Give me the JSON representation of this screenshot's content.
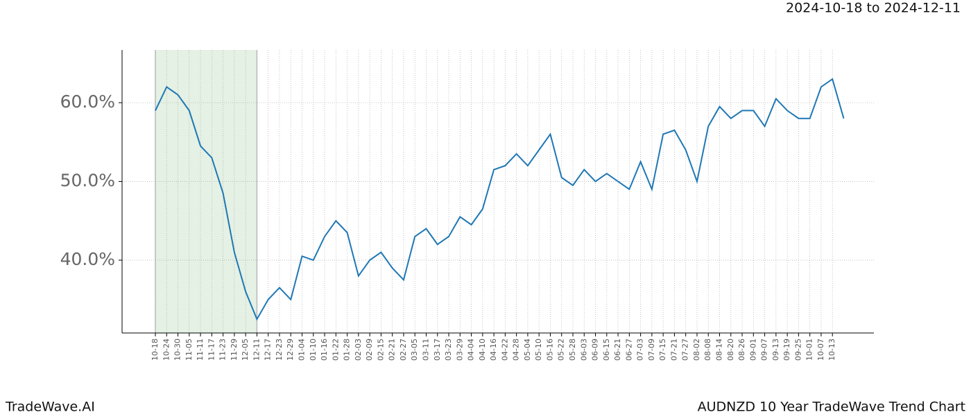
{
  "chart_data": {
    "type": "line",
    "title": "2024-10-18 to 2024-12-11",
    "footer_left": "TradeWave.AI",
    "footer_right": "AUDNZD 10 Year TradeWave Trend Chart",
    "categories": [
      "10-18",
      "10-24",
      "10-30",
      "11-05",
      "11-11",
      "11-17",
      "11-23",
      "11-29",
      "12-05",
      "12-11",
      "12-17",
      "12-23",
      "12-29",
      "01-04",
      "01-10",
      "01-16",
      "01-22",
      "01-28",
      "02-03",
      "02-09",
      "02-15",
      "02-21",
      "02-27",
      "03-05",
      "03-11",
      "03-17",
      "03-23",
      "03-29",
      "04-04",
      "04-10",
      "04-16",
      "04-22",
      "04-28",
      "05-04",
      "05-10",
      "05-16",
      "05-22",
      "05-28",
      "06-03",
      "06-09",
      "06-15",
      "06-21",
      "06-27",
      "07-03",
      "07-09",
      "07-15",
      "07-21",
      "07-27",
      "08-02",
      "08-08",
      "08-14",
      "08-20",
      "08-26",
      "09-01",
      "09-07",
      "09-13",
      "09-19",
      "09-25",
      "10-01",
      "10-07",
      "10-13",
      null
    ],
    "series": [
      {
        "color": "#1f77b4",
        "values": [
          59,
          62,
          61,
          59,
          54.5,
          53,
          48.5,
          41,
          36,
          32.5,
          35,
          36.5,
          35,
          40.5,
          40,
          43,
          45,
          43.5,
          38,
          40,
          41,
          39,
          37.5,
          43,
          44,
          42,
          43,
          45.5,
          44.5,
          46.5,
          51.5,
          52,
          53.5,
          52,
          54,
          56,
          50.5,
          49.5,
          51.5,
          50,
          51,
          50,
          49,
          52.5,
          49,
          56,
          56.5,
          54,
          50,
          57,
          59.5,
          58,
          59,
          59,
          57,
          60.5,
          59,
          58,
          58,
          62,
          63,
          58
        ]
      }
    ],
    "ylim": [
      30.75,
      66.7
    ],
    "yticks": [
      {
        "value": 40,
        "label": "40.0%"
      },
      {
        "value": 50,
        "label": "50.0%"
      },
      {
        "value": 60,
        "label": "60.0%"
      }
    ],
    "grid": true,
    "highlight": {
      "from": 0,
      "to": 9,
      "color": "#e4f1e4"
    }
  }
}
